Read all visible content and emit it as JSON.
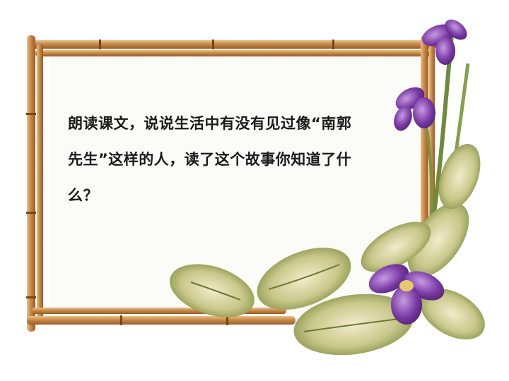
{
  "slide": {
    "text_lines": [
      "朗读课文，说说生活中有没有见过像“南郭",
      "先生”这样的人，读了这个故事你知道了什",
      "么？"
    ]
  }
}
